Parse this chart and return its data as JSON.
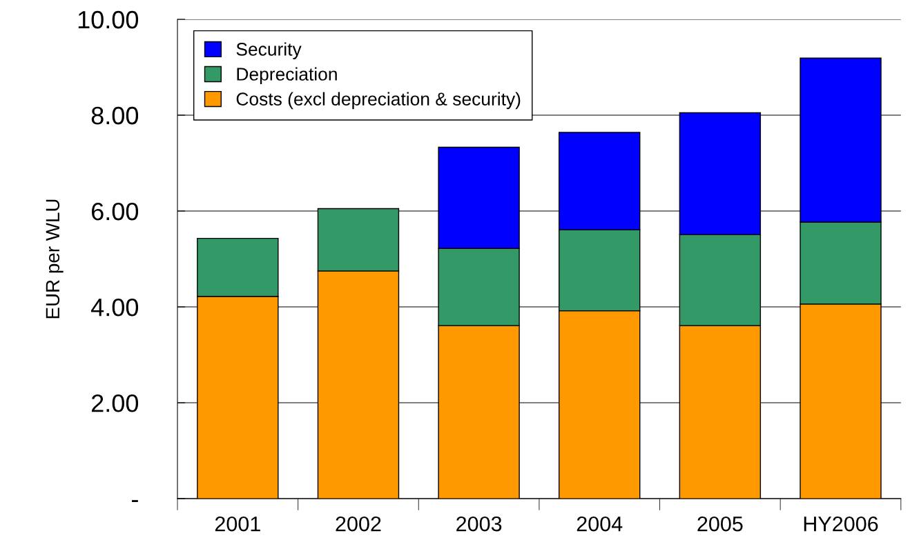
{
  "chart_data": {
    "type": "bar",
    "stacked": true,
    "ylabel": "EUR per WLU",
    "categories": [
      "2001",
      "2002",
      "2003",
      "2004",
      "2005",
      "HY2006"
    ],
    "series": [
      {
        "name": "Costs (excl depreciation & security)",
        "color": "#ff9900",
        "values": [
          4.22,
          4.75,
          3.61,
          3.92,
          3.61,
          4.06
        ]
      },
      {
        "name": "Depreciation",
        "color": "#339966",
        "values": [
          1.21,
          1.3,
          1.61,
          1.69,
          1.9,
          1.71
        ]
      },
      {
        "name": "Security",
        "color": "#0000ff",
        "values": [
          null,
          null,
          2.11,
          2.03,
          2.54,
          3.42
        ]
      }
    ],
    "ylim": [
      0,
      10
    ],
    "yticks": [
      {
        "value": 0,
        "label": "-"
      },
      {
        "value": 2,
        "label": "2.00"
      },
      {
        "value": 4,
        "label": "4.00"
      },
      {
        "value": 6,
        "label": "6.00"
      },
      {
        "value": 8,
        "label": "8.00"
      },
      {
        "value": 10,
        "label": "10.00"
      }
    ],
    "grid": "y",
    "legend": "top left"
  }
}
